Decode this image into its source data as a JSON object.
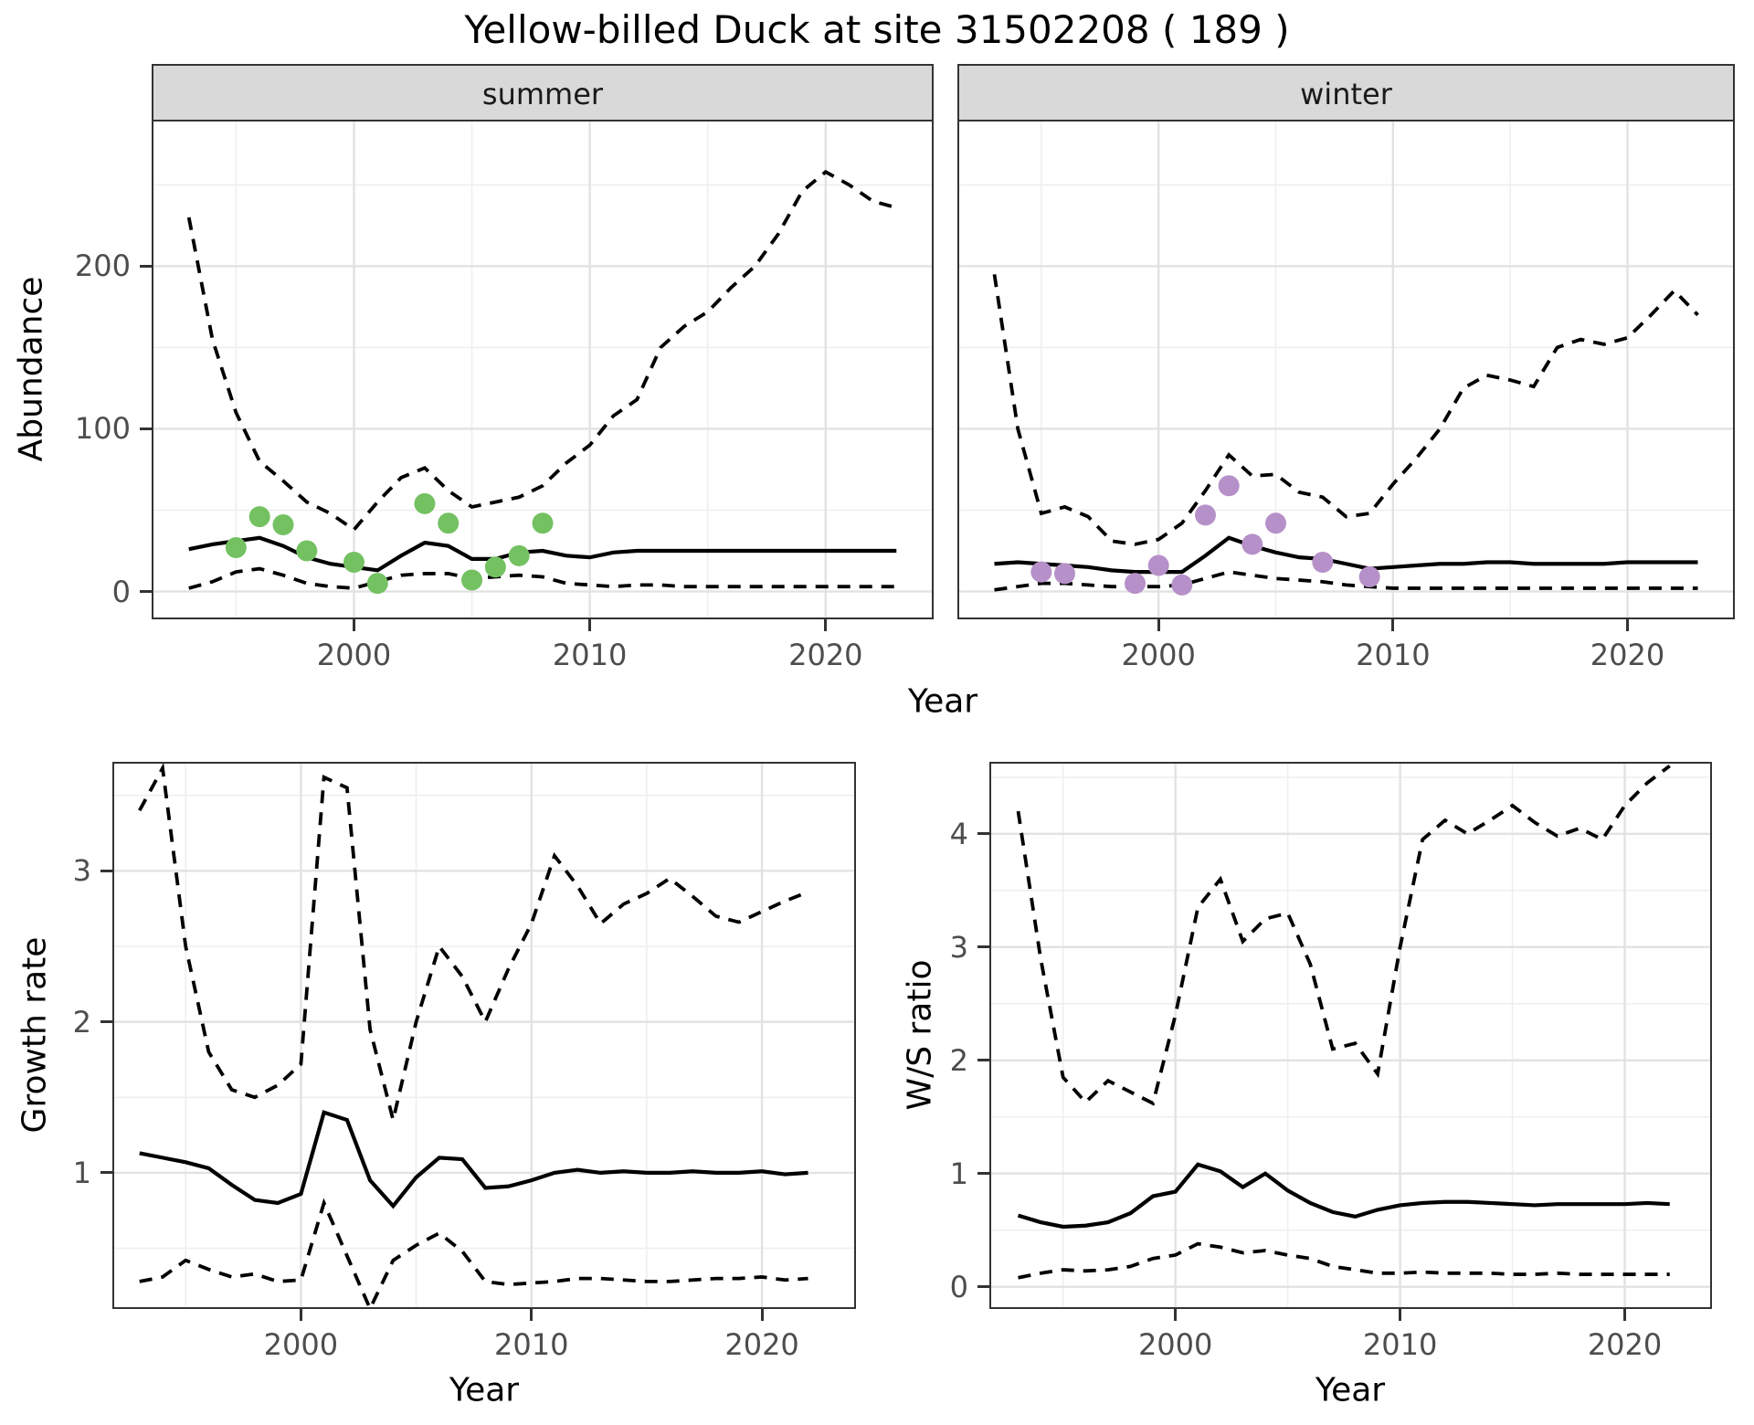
{
  "figure": {
    "title": "Yellow-billed Duck at site 31502208 ( 189 )",
    "shared_xlabel": "Year",
    "legend": "none"
  },
  "colors": {
    "summer_points": "#74C162",
    "winter_points": "#B690C8",
    "line": "#000000",
    "strip_bg": "#D9D9D9",
    "grid_major": "#E2E2E2",
    "grid_minor": "#EFEFEF",
    "tick_text": "#4D4D4D"
  },
  "chart_data": [
    {
      "type": "line",
      "facet_label": "summer",
      "ylabel": "Abundance",
      "xlabel": "Year",
      "xlim": [
        1991.5,
        2024.5
      ],
      "ylim": [
        -16,
        289
      ],
      "x_ticks": [
        2000,
        2010,
        2020
      ],
      "x_minor": [
        1995,
        2005,
        2015
      ],
      "y_ticks": [
        0,
        100,
        200
      ],
      "y_minor": [
        50,
        150,
        250
      ],
      "y_labels_shown": true,
      "grid": true,
      "years": [
        1993,
        1994,
        1995,
        1996,
        1997,
        1998,
        1999,
        2000,
        2001,
        2002,
        2003,
        2004,
        2005,
        2006,
        2007,
        2008,
        2009,
        2010,
        2011,
        2012,
        2013,
        2014,
        2015,
        2016,
        2017,
        2018,
        2019,
        2020,
        2021,
        2022,
        2023
      ],
      "series": [
        {
          "name": "upper-95-ci",
          "style": "dashed",
          "values": [
            230,
            155,
            110,
            80,
            68,
            55,
            48,
            38,
            55,
            70,
            76,
            62,
            52,
            55,
            58,
            65,
            79,
            90,
            108,
            118,
            150,
            163,
            172,
            187,
            200,
            220,
            246,
            258,
            250,
            240,
            236
          ]
        },
        {
          "name": "median",
          "style": "solid",
          "values": [
            26,
            29,
            31,
            33,
            28,
            21,
            17,
            15,
            13,
            22,
            30,
            28,
            20,
            20,
            24,
            25,
            22,
            21,
            24,
            25,
            25,
            25,
            25,
            25,
            25,
            25,
            25,
            25,
            25,
            25,
            25
          ]
        },
        {
          "name": "lower-95-ci",
          "style": "dashed",
          "values": [
            2,
            6,
            12,
            14,
            10,
            5,
            3,
            2,
            6,
            10,
            11,
            11,
            8,
            9,
            10,
            9,
            5,
            4,
            3,
            4,
            4,
            3,
            3,
            3,
            3,
            3,
            3,
            3,
            3,
            3,
            3
          ]
        }
      ],
      "points": {
        "name": "observed-counts-summer",
        "color": "#74C162",
        "x": [
          1995,
          1996,
          1997,
          1998,
          2000,
          2001,
          2003,
          2004,
          2005,
          2006,
          2007,
          2008
        ],
        "y": [
          27,
          46,
          41,
          25,
          18,
          5,
          54,
          42,
          7,
          15,
          22,
          42
        ]
      }
    },
    {
      "type": "line",
      "facet_label": "winter",
      "ylabel": "Abundance",
      "xlabel": "Year",
      "xlim": [
        1991.5,
        2024.5
      ],
      "ylim": [
        -16,
        289
      ],
      "x_ticks": [
        2000,
        2010,
        2020
      ],
      "x_minor": [
        1995,
        2005,
        2015
      ],
      "y_ticks": [
        0,
        100,
        200
      ],
      "y_minor": [
        50,
        150,
        250
      ],
      "y_labels_shown": false,
      "grid": true,
      "years": [
        1993,
        1994,
        1995,
        1996,
        1997,
        1998,
        1999,
        2000,
        2001,
        2002,
        2003,
        2004,
        2005,
        2006,
        2007,
        2008,
        2009,
        2010,
        2011,
        2012,
        2013,
        2014,
        2015,
        2016,
        2017,
        2018,
        2019,
        2020,
        2021,
        2022,
        2023
      ],
      "series": [
        {
          "name": "upper-95-ci",
          "style": "dashed",
          "values": [
            195,
            100,
            48,
            52,
            46,
            31,
            29,
            32,
            42,
            62,
            84,
            71,
            72,
            61,
            58,
            46,
            48,
            66,
            82,
            100,
            125,
            133,
            130,
            126,
            150,
            155,
            152,
            156,
            170,
            185,
            170
          ]
        },
        {
          "name": "median",
          "style": "solid",
          "values": [
            17,
            18,
            17,
            16,
            15,
            13,
            12,
            12,
            12,
            22,
            33,
            28,
            24,
            21,
            20,
            17,
            14,
            15,
            16,
            17,
            17,
            18,
            18,
            17,
            17,
            17,
            17,
            18,
            18,
            18,
            18
          ]
        },
        {
          "name": "lower-95-ci",
          "style": "dashed",
          "values": [
            1,
            3,
            5,
            5,
            4,
            3,
            3,
            3,
            4,
            8,
            12,
            10,
            8,
            7,
            6,
            4,
            3,
            2,
            2,
            2,
            2,
            2,
            2,
            2,
            2,
            2,
            2,
            2,
            2,
            2,
            2
          ]
        }
      ],
      "points": {
        "name": "observed-counts-winter",
        "color": "#B690C8",
        "x": [
          1995,
          1996,
          1999,
          2000,
          2001,
          2002,
          2003,
          2004,
          2005,
          2007,
          2009
        ],
        "y": [
          12,
          11,
          5,
          16,
          4,
          47,
          65,
          29,
          42,
          18,
          9
        ]
      }
    },
    {
      "type": "line",
      "facet_label": "",
      "ylabel": "Growth rate",
      "xlabel": "Year",
      "xlim": [
        1991.9,
        2024.0
      ],
      "ylim": [
        0.11,
        3.71
      ],
      "x_ticks": [
        2000,
        2010,
        2020
      ],
      "x_minor": [
        1995,
        2005,
        2015
      ],
      "y_ticks": [
        1,
        2,
        3
      ],
      "y_minor": [
        0.5,
        1.5,
        2.5,
        3.5
      ],
      "y_labels_shown": true,
      "grid": true,
      "years": [
        1993,
        1994,
        1995,
        1996,
        1997,
        1998,
        1999,
        2000,
        2001,
        2002,
        2003,
        2004,
        2005,
        2006,
        2007,
        2008,
        2009,
        2010,
        2011,
        2012,
        2013,
        2014,
        2015,
        2016,
        2017,
        2018,
        2019,
        2020,
        2021,
        2022
      ],
      "series": [
        {
          "name": "upper-95-ci",
          "style": "dashed",
          "values": [
            3.4,
            3.68,
            2.5,
            1.8,
            1.55,
            1.5,
            1.58,
            1.72,
            3.62,
            3.55,
            1.95,
            1.35,
            2.0,
            2.5,
            2.3,
            2.0,
            2.35,
            2.65,
            3.1,
            2.9,
            2.65,
            2.78,
            2.85,
            2.95,
            2.83,
            2.7,
            2.66,
            2.73,
            2.8,
            2.86
          ]
        },
        {
          "name": "median",
          "style": "solid",
          "values": [
            1.13,
            1.1,
            1.07,
            1.03,
            0.92,
            0.82,
            0.8,
            0.86,
            1.4,
            1.35,
            0.95,
            0.78,
            0.97,
            1.1,
            1.09,
            0.9,
            0.91,
            0.95,
            1.0,
            1.02,
            1.0,
            1.01,
            1.0,
            1.0,
            1.01,
            1.0,
            1.0,
            1.01,
            0.99,
            1.0
          ]
        },
        {
          "name": "lower-95-ci",
          "style": "dashed",
          "values": [
            0.28,
            0.31,
            0.42,
            0.36,
            0.31,
            0.33,
            0.28,
            0.29,
            0.8,
            0.45,
            0.1,
            0.42,
            0.52,
            0.6,
            0.48,
            0.28,
            0.26,
            0.27,
            0.28,
            0.3,
            0.3,
            0.29,
            0.28,
            0.28,
            0.29,
            0.3,
            0.3,
            0.31,
            0.29,
            0.3
          ]
        }
      ],
      "points": null
    },
    {
      "type": "line",
      "facet_label": "",
      "ylabel": "W/S ratio",
      "xlabel": "Year",
      "xlim": [
        1991.8,
        2023.8
      ],
      "ylim": [
        -0.18,
        4.62
      ],
      "x_ticks": [
        2000,
        2010,
        2020
      ],
      "x_minor": [
        1995,
        2005,
        2015
      ],
      "y_ticks": [
        0,
        1,
        2,
        3,
        4
      ],
      "y_minor": [
        0.5,
        1.5,
        2.5,
        3.5,
        4.5
      ],
      "y_labels_shown": true,
      "grid": true,
      "years": [
        1993,
        1994,
        1995,
        1996,
        1997,
        1998,
        1999,
        2000,
        2001,
        2002,
        2003,
        2004,
        2005,
        2006,
        2007,
        2008,
        2009,
        2010,
        2011,
        2012,
        2013,
        2014,
        2015,
        2016,
        2017,
        2018,
        2019,
        2020,
        2021,
        2022
      ],
      "series": [
        {
          "name": "upper-95-ci",
          "style": "dashed",
          "values": [
            4.2,
            2.9,
            1.85,
            1.63,
            1.82,
            1.72,
            1.62,
            2.4,
            3.35,
            3.6,
            3.05,
            3.25,
            3.3,
            2.85,
            2.1,
            2.15,
            1.88,
            3.0,
            3.95,
            4.12,
            4.0,
            4.12,
            4.25,
            4.1,
            3.98,
            4.05,
            3.95,
            4.25,
            4.45,
            4.6
          ]
        },
        {
          "name": "median",
          "style": "solid",
          "values": [
            0.63,
            0.57,
            0.53,
            0.54,
            0.57,
            0.65,
            0.8,
            0.84,
            1.08,
            1.02,
            0.88,
            1.0,
            0.85,
            0.74,
            0.66,
            0.62,
            0.68,
            0.72,
            0.74,
            0.75,
            0.75,
            0.74,
            0.73,
            0.72,
            0.73,
            0.73,
            0.73,
            0.73,
            0.74,
            0.73
          ]
        },
        {
          "name": "lower-95-ci",
          "style": "dashed",
          "values": [
            0.08,
            0.12,
            0.15,
            0.14,
            0.15,
            0.18,
            0.25,
            0.28,
            0.38,
            0.35,
            0.3,
            0.32,
            0.28,
            0.25,
            0.18,
            0.15,
            0.12,
            0.12,
            0.13,
            0.12,
            0.12,
            0.12,
            0.11,
            0.11,
            0.12,
            0.11,
            0.11,
            0.11,
            0.11,
            0.11
          ]
        }
      ],
      "points": null
    }
  ]
}
